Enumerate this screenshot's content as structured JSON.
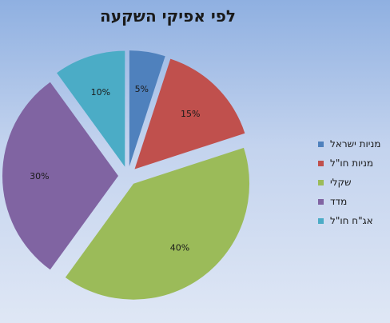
{
  "chart_data": {
    "type": "pie",
    "title": "לפי אפיקי השקעה",
    "series": [
      {
        "name": "מניות ישראל",
        "value": 5,
        "label": "5%",
        "color": "#4f81bd"
      },
      {
        "name": "מניות חו\"ל",
        "value": 15,
        "label": "15%",
        "color": "#c0504d"
      },
      {
        "name": "שקלי",
        "value": 40,
        "label": "40%",
        "color": "#9bbb59"
      },
      {
        "name": "מדד",
        "value": 30,
        "label": "30%",
        "color": "#8064a2"
      },
      {
        "name": "אג\"ח חו\"ל",
        "value": 10,
        "label": "10%",
        "color": "#4bacc6"
      }
    ],
    "legend": "right",
    "exploded": true
  }
}
